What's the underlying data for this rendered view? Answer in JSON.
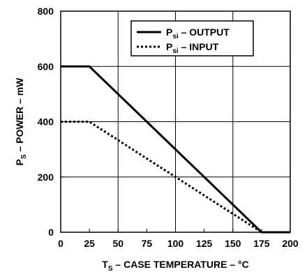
{
  "chart_data": {
    "type": "line",
    "xlabel": {
      "main": "T",
      "sub": "S",
      "rest": " – CASE TEMPERATURE – °C"
    },
    "ylabel": {
      "main": "P",
      "sub": "S",
      "rest": " – POWER – mW"
    },
    "xlim": [
      0,
      200
    ],
    "ylim": [
      0,
      800
    ],
    "x_ticks": [
      0,
      25,
      50,
      75,
      100,
      125,
      150,
      175,
      200
    ],
    "y_ticks": [
      0,
      200,
      400,
      600,
      800
    ],
    "grid": true,
    "legend_position": "top-right",
    "series": [
      {
        "name": {
          "main": "P",
          "sub": "si",
          "rest": " – OUTPUT"
        },
        "style": "solid",
        "color": "#000000",
        "points": [
          [
            0,
            600
          ],
          [
            25,
            600
          ],
          [
            175,
            0
          ],
          [
            200,
            0
          ]
        ]
      },
      {
        "name": {
          "main": "P",
          "sub": "si",
          "rest": " – INPUT"
        },
        "style": "dotted",
        "color": "#000000",
        "points": [
          [
            0,
            400
          ],
          [
            25,
            400
          ],
          [
            175,
            0
          ],
          [
            200,
            0
          ]
        ]
      }
    ]
  }
}
